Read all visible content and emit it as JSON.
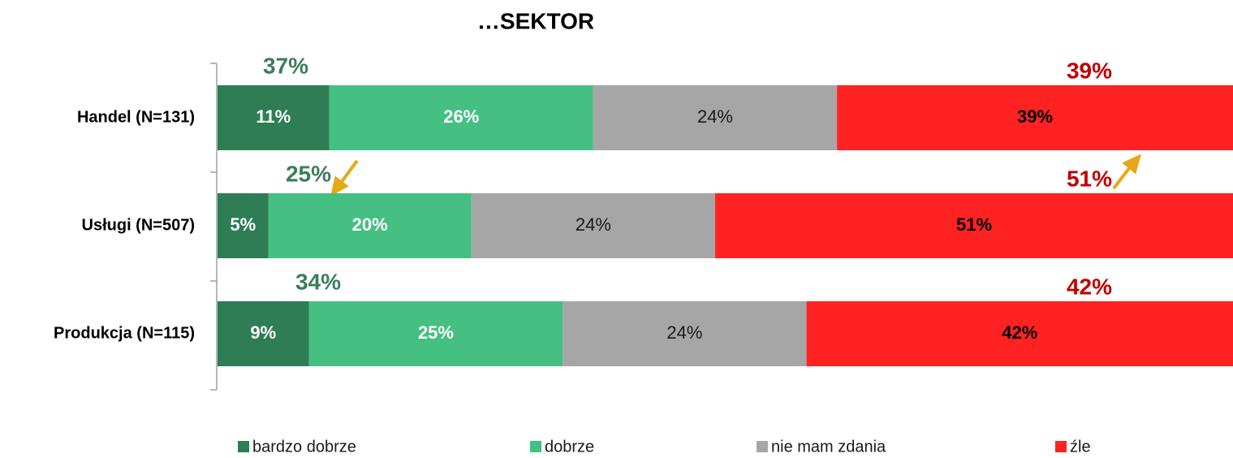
{
  "chart_data": {
    "type": "stacked-bar-horizontal",
    "title": "…SEKTOR",
    "categories": [
      "Handel (N=131)",
      "Usługi (N=507)",
      "Produkcja (N=115)"
    ],
    "xlim": [
      0,
      100
    ],
    "series": [
      {
        "name": "bardzo dobrze",
        "color": "#2e7d55",
        "label_color": "#ffffff",
        "label_bold": true,
        "values": [
          11,
          5,
          9
        ],
        "value_labels": [
          "11%",
          "5%",
          "9%"
        ]
      },
      {
        "name": "dobrze",
        "color": "#45bf82",
        "label_color": "#ffffff",
        "label_bold": true,
        "values": [
          26,
          20,
          25
        ],
        "value_labels": [
          "26%",
          "20%",
          "25%"
        ]
      },
      {
        "name": "nie mam zdania",
        "color": "#a6a6a6",
        "label_color": "#1a1a1a",
        "label_bold": false,
        "values": [
          24,
          24,
          24
        ],
        "value_labels": [
          "24%",
          "24%",
          "24%"
        ]
      },
      {
        "name": "źle",
        "color": "#ff2222",
        "label_color": "#000000",
        "label_bold": true,
        "values": [
          39,
          51,
          42
        ],
        "value_labels": [
          "39%",
          "51%",
          "42%"
        ]
      }
    ],
    "annotations": {
      "positive": {
        "color": "#3a7d5a",
        "labels": [
          "37%",
          "25%",
          "34%"
        ]
      },
      "negative": {
        "color": "#c00000",
        "labels": [
          "39%",
          "51%",
          "42%"
        ]
      }
    },
    "legend": "bottom"
  }
}
